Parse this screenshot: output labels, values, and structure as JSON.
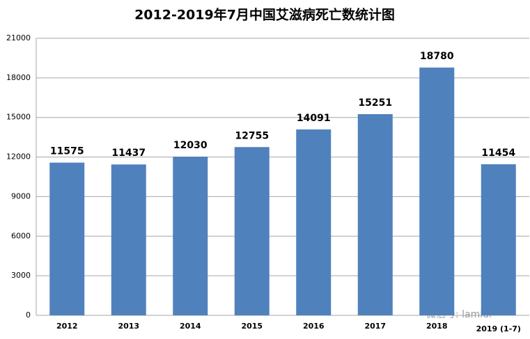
{
  "chart_data": {
    "type": "bar",
    "title": "2012-2019年7月中国艾滋病死亡数统计图",
    "categories": [
      "2012",
      "2013",
      "2014",
      "2015",
      "2016",
      "2017",
      "2018",
      "2019 (1-7)"
    ],
    "values": [
      11575,
      11437,
      12030,
      12755,
      14091,
      15251,
      18780,
      11454
    ],
    "color": "#4f81bd",
    "ylim": [
      0,
      21000
    ],
    "yticks": [
      0,
      3000,
      6000,
      9000,
      12000,
      15000,
      18000,
      21000
    ],
    "grid": true,
    "watermark": "微信号: lamidr"
  }
}
